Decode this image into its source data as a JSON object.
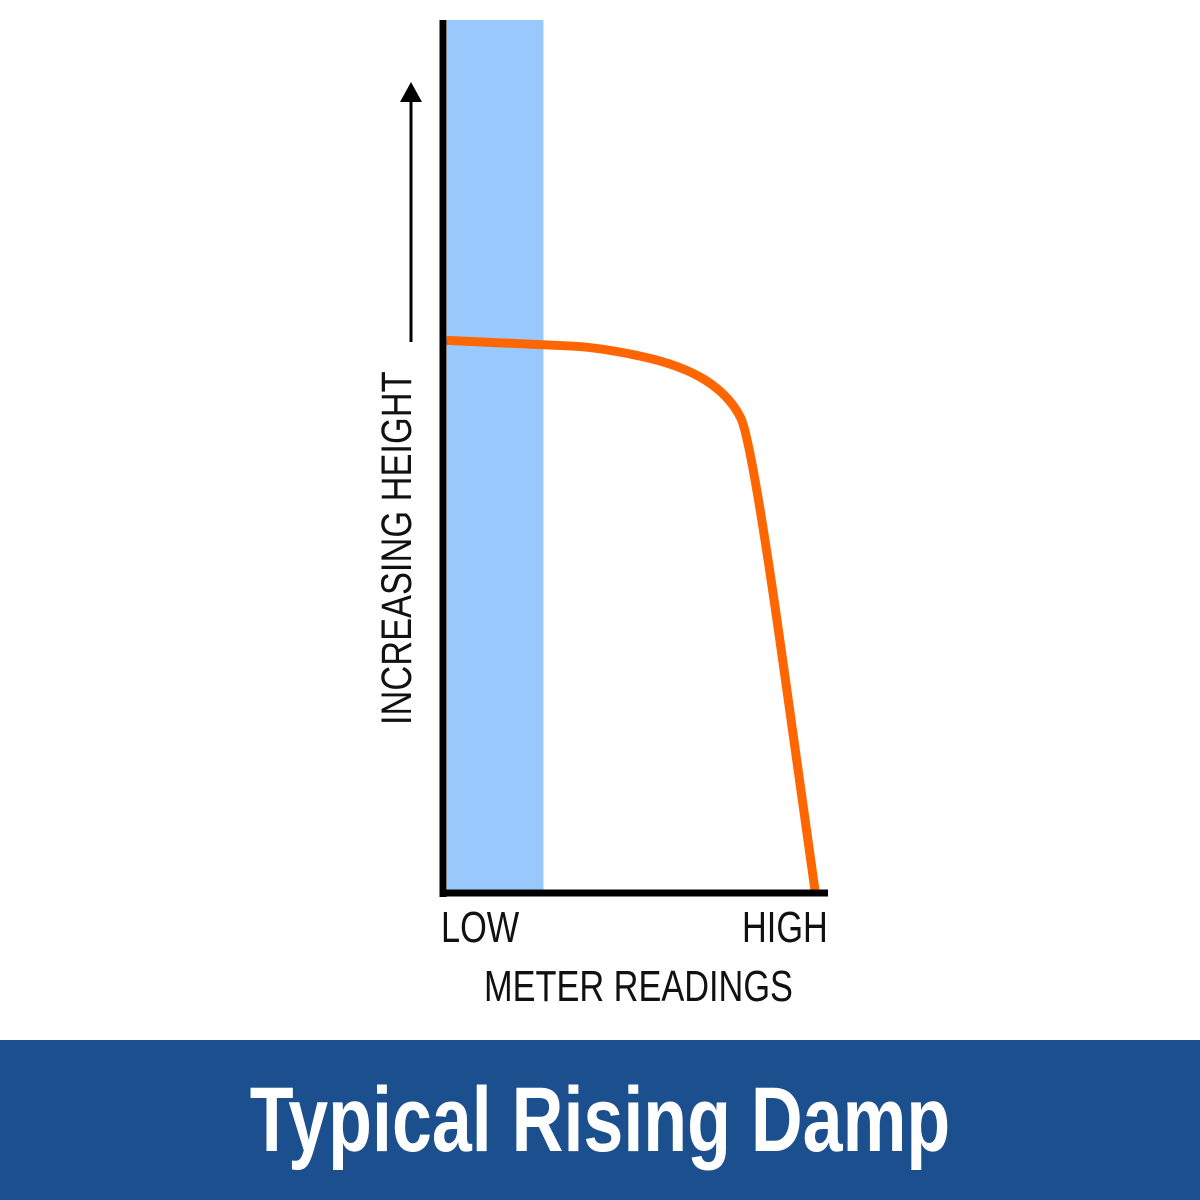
{
  "banner": {
    "title": "Typical Rising Damp",
    "background": "#1b4f8e"
  },
  "chart_data": {
    "type": "line",
    "xlabel": "METER READINGS",
    "ylabel": "INCREASING HEIGHT",
    "x_tick_labels": [
      "LOW",
      "HIGH"
    ],
    "xlim": [
      0,
      1
    ],
    "ylim": [
      0,
      1
    ],
    "grid": false,
    "series": [
      {
        "color": "#ff6600",
        "x": [
          0.01,
          0.27,
          0.42,
          0.64,
          0.77,
          0.83,
          1.0
        ],
        "y": [
          0.633,
          0.628,
          0.625,
          0.605,
          0.57,
          0.519,
          0.003
        ]
      }
    ],
    "shaded_band": {
      "x": [
        0,
        0.27
      ],
      "color": "#99c8fc"
    }
  }
}
